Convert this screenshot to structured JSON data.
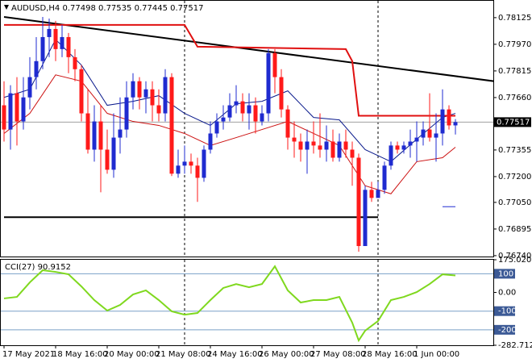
{
  "chart_data": {
    "type": "candlestick",
    "symbol": "AUDUSD,H4",
    "categories": [
      "17 May 2021",
      null,
      null,
      null,
      null,
      null,
      null,
      null,
      "18 May 16:00",
      null,
      null,
      null,
      null,
      null,
      null,
      null,
      "20 May 00:00",
      null,
      null,
      null,
      null,
      null,
      null,
      null,
      "21 May 08:00",
      null,
      null,
      null,
      null,
      null,
      null,
      null,
      "24 May 16:00",
      null,
      null,
      null,
      null,
      null,
      null,
      null,
      "26 May 00:00",
      null,
      null,
      null,
      null,
      null,
      null,
      null,
      "27 May 08:00",
      null,
      null,
      null,
      null,
      null,
      null,
      null,
      "28 May 16:00",
      null,
      null,
      null,
      null,
      null,
      null,
      null,
      "1 Jun 00:00",
      null,
      null,
      null,
      null,
      null,
      null
    ],
    "open": [
      0.77615,
      0.77474,
      0.77685,
      0.77521,
      0.77661,
      0.77779,
      0.77872,
      0.78012,
      0.78059,
      0.77942,
      0.78012,
      0.77895,
      0.77825,
      0.77568,
      0.77357,
      0.77521,
      0.77357,
      0.7724,
      0.77427,
      0.77474,
      0.77661,
      0.77755,
      0.77661,
      0.77708,
      0.77615,
      0.77568,
      0.77779,
      0.77217,
      0.77264,
      0.77287,
      0.77264,
      0.77193,
      0.77357,
      0.77451,
      0.77521,
      0.77544,
      0.77615,
      0.77638,
      0.77568,
      0.77615,
      0.77521,
      0.77568,
      0.77919,
      0.77779,
      0.77591,
      0.77427,
      0.77404,
      0.77357,
      0.77404,
      0.77381,
      0.77357,
      0.77404,
      0.7731,
      0.77404,
      0.77357,
      0.7731,
      0.76796,
      0.77123,
      0.77076,
      0.77123,
      0.77264,
      0.77381,
      0.77357,
      0.77381,
      0.77404,
      0.77427,
      0.77474,
      0.77427,
      0.77451,
      0.77591,
      0.77498
    ],
    "high": [
      0.77755,
      0.77732,
      0.77779,
      0.77779,
      0.77895,
      0.78012,
      0.78129,
      0.7812,
      0.78106,
      0.78083,
      0.78036,
      0.77942,
      0.77849,
      0.77708,
      0.77615,
      0.77615,
      0.77474,
      0.77568,
      0.77661,
      0.77755,
      0.77802,
      0.77779,
      0.77755,
      0.77755,
      0.77708,
      0.77825,
      0.77802,
      0.77357,
      0.77381,
      0.77334,
      0.7731,
      0.77381,
      0.77521,
      0.77568,
      0.77615,
      0.77685,
      0.77732,
      0.77685,
      0.77685,
      0.77661,
      0.77615,
      0.77942,
      0.77942,
      0.77825,
      0.77615,
      0.77521,
      0.77451,
      0.77474,
      0.77521,
      0.77568,
      0.77498,
      0.77474,
      0.77451,
      0.77474,
      0.77404,
      0.77334,
      0.77147,
      0.7717,
      0.7717,
      0.77287,
      0.77404,
      0.77404,
      0.77404,
      0.77474,
      0.77521,
      0.77521,
      0.77685,
      0.77568,
      0.77708,
      0.77615,
      0.77535
    ],
    "low": [
      0.77404,
      0.77357,
      0.77381,
      0.77474,
      0.77591,
      0.77708,
      0.77825,
      0.77895,
      0.77872,
      0.77895,
      0.77802,
      0.77755,
      0.77521,
      0.77334,
      0.77287,
      0.77109,
      0.77217,
      0.77193,
      0.77334,
      0.77427,
      0.77591,
      0.77591,
      0.77568,
      0.77521,
      0.77521,
      0.77521,
      0.77203,
      0.77193,
      0.77217,
      0.77217,
      0.77053,
      0.7717,
      0.77334,
      0.77427,
      0.77474,
      0.77521,
      0.77568,
      0.77521,
      0.77474,
      0.77451,
      0.77498,
      0.77521,
      0.77685,
      0.77544,
      0.77357,
      0.7731,
      0.77287,
      0.77217,
      0.77334,
      0.7731,
      0.77287,
      0.77287,
      0.77287,
      0.7731,
      0.77147,
      0.76763,
      0.76796,
      0.77053,
      0.77076,
      0.771,
      0.7724,
      0.77334,
      0.77334,
      0.7731,
      0.77287,
      0.77381,
      0.77404,
      0.77287,
      0.77381,
      0.77474,
      0.77445
    ],
    "close": [
      0.77474,
      0.77685,
      0.77521,
      0.77661,
      0.77779,
      0.77872,
      0.78012,
      0.78059,
      0.77942,
      0.78012,
      0.77895,
      0.77825,
      0.77568,
      0.77357,
      0.77521,
      0.77357,
      0.7724,
      0.77427,
      0.77474,
      0.77661,
      0.77755,
      0.77661,
      0.77708,
      0.77615,
      0.77568,
      0.77779,
      0.77217,
      0.77264,
      0.77287,
      0.77264,
      0.77193,
      0.77357,
      0.77451,
      0.77521,
      0.77544,
      0.77615,
      0.77638,
      0.77568,
      0.77615,
      0.77521,
      0.77568,
      0.77919,
      0.77779,
      0.77591,
      0.77427,
      0.77404,
      0.77357,
      0.77404,
      0.77381,
      0.77357,
      0.77404,
      0.7731,
      0.77404,
      0.77357,
      0.7731,
      0.76796,
      0.77123,
      0.77076,
      0.77123,
      0.77264,
      0.77381,
      0.77357,
      0.77381,
      0.77404,
      0.77427,
      0.77474,
      0.77427,
      0.77451,
      0.77591,
      0.77498,
      0.77517
    ],
    "bull_color": "#1f2bd0",
    "bear_color": "#ff1a1a",
    "ylim": [
      0.76735,
      0.78223
    ],
    "yticks": [
      0.78125,
      {
        "value": 0.7797,
        "label": "0.77970"
      },
      0.77815,
      {
        "value": 0.7766,
        "label": "0.77660"
      },
      0.77355,
      {
        "value": 0.772,
        "label": "0.77200"
      },
      {
        "value": 0.7705,
        "label": "0.77050"
      },
      0.76895,
      {
        "value": 0.7674,
        "label": "0.76740"
      }
    ],
    "separators": [
      28,
      58
    ],
    "lines": [
      {
        "color": "#0a1a8c",
        "x": [
          0,
          4,
          8,
          12,
          16,
          20,
          24,
          28,
          32,
          36,
          40,
          44,
          48,
          52,
          56,
          60,
          64,
          68,
          70
        ],
        "values": [
          0.77661,
          0.77708,
          0.77998,
          0.77849,
          0.77615,
          0.77638,
          0.77671,
          0.77568,
          0.77498,
          0.77624,
          0.77638,
          0.77699,
          0.77544,
          0.7753,
          0.77357,
          0.77287,
          0.77418,
          0.77544,
          0.77568
        ]
      },
      {
        "color": "#cc1111",
        "x": [
          0,
          4,
          8,
          12,
          16,
          20,
          24,
          28,
          32,
          36,
          40,
          44,
          48,
          52,
          56,
          60,
          64,
          68,
          70
        ],
        "values": [
          0.77451,
          0.77568,
          0.77792,
          0.77755,
          0.77568,
          0.77521,
          0.77498,
          0.77451,
          0.77381,
          0.77427,
          0.77474,
          0.77521,
          0.77451,
          0.77381,
          0.77147,
          0.771,
          0.77287,
          0.7731,
          0.77371
        ]
      },
      {
        "color": "#000000",
        "x": [
          0,
          76
        ],
        "values": [
          0.78129,
          0.77755
        ]
      },
      {
        "color": "#e01010",
        "x": [
          0,
          28,
          30,
          53,
          54,
          55,
          70
        ],
        "values": [
          0.78083,
          0.78083,
          0.77956,
          0.77942,
          0.77872,
          0.77554,
          0.77554
        ]
      },
      {
        "color": "#000000",
        "x": [
          0,
          58
        ],
        "values": [
          0.76964,
          0.76964
        ]
      },
      {
        "color": "#1f2bd0",
        "x": [
          68,
          70
        ],
        "values": [
          0.77025,
          0.77025
        ]
      }
    ],
    "cci": {
      "name": "CCI(27)",
      "color": "#7fd81e",
      "x": [
        0,
        2,
        4,
        6,
        8,
        10,
        12,
        14,
        16,
        18,
        20,
        22,
        24,
        26,
        28,
        30,
        32,
        34,
        36,
        38,
        40,
        42,
        44,
        46,
        48,
        50,
        52,
        54,
        55,
        56,
        58,
        60,
        62,
        64,
        66,
        68,
        70
      ],
      "values": [
        -32,
        -24,
        54,
        119,
        110,
        97,
        32,
        -41,
        -97,
        -67,
        -11,
        11,
        -41,
        -101,
        -119,
        -110,
        -41,
        24,
        45,
        28,
        45,
        140,
        11,
        -54,
        -41,
        -41,
        -24,
        -162,
        -257,
        -205,
        -153,
        -41,
        -24,
        2,
        45,
        97,
        90.9152
      ],
      "ylim": [
        -282.712,
        175.0203
      ],
      "yticks": [
        175.0203,
        100,
        {
          "value": 0,
          "label": "0.00"
        },
        -100,
        -200,
        -282.712
      ],
      "levels": [
        100,
        -100,
        -200
      ]
    }
  }
}
